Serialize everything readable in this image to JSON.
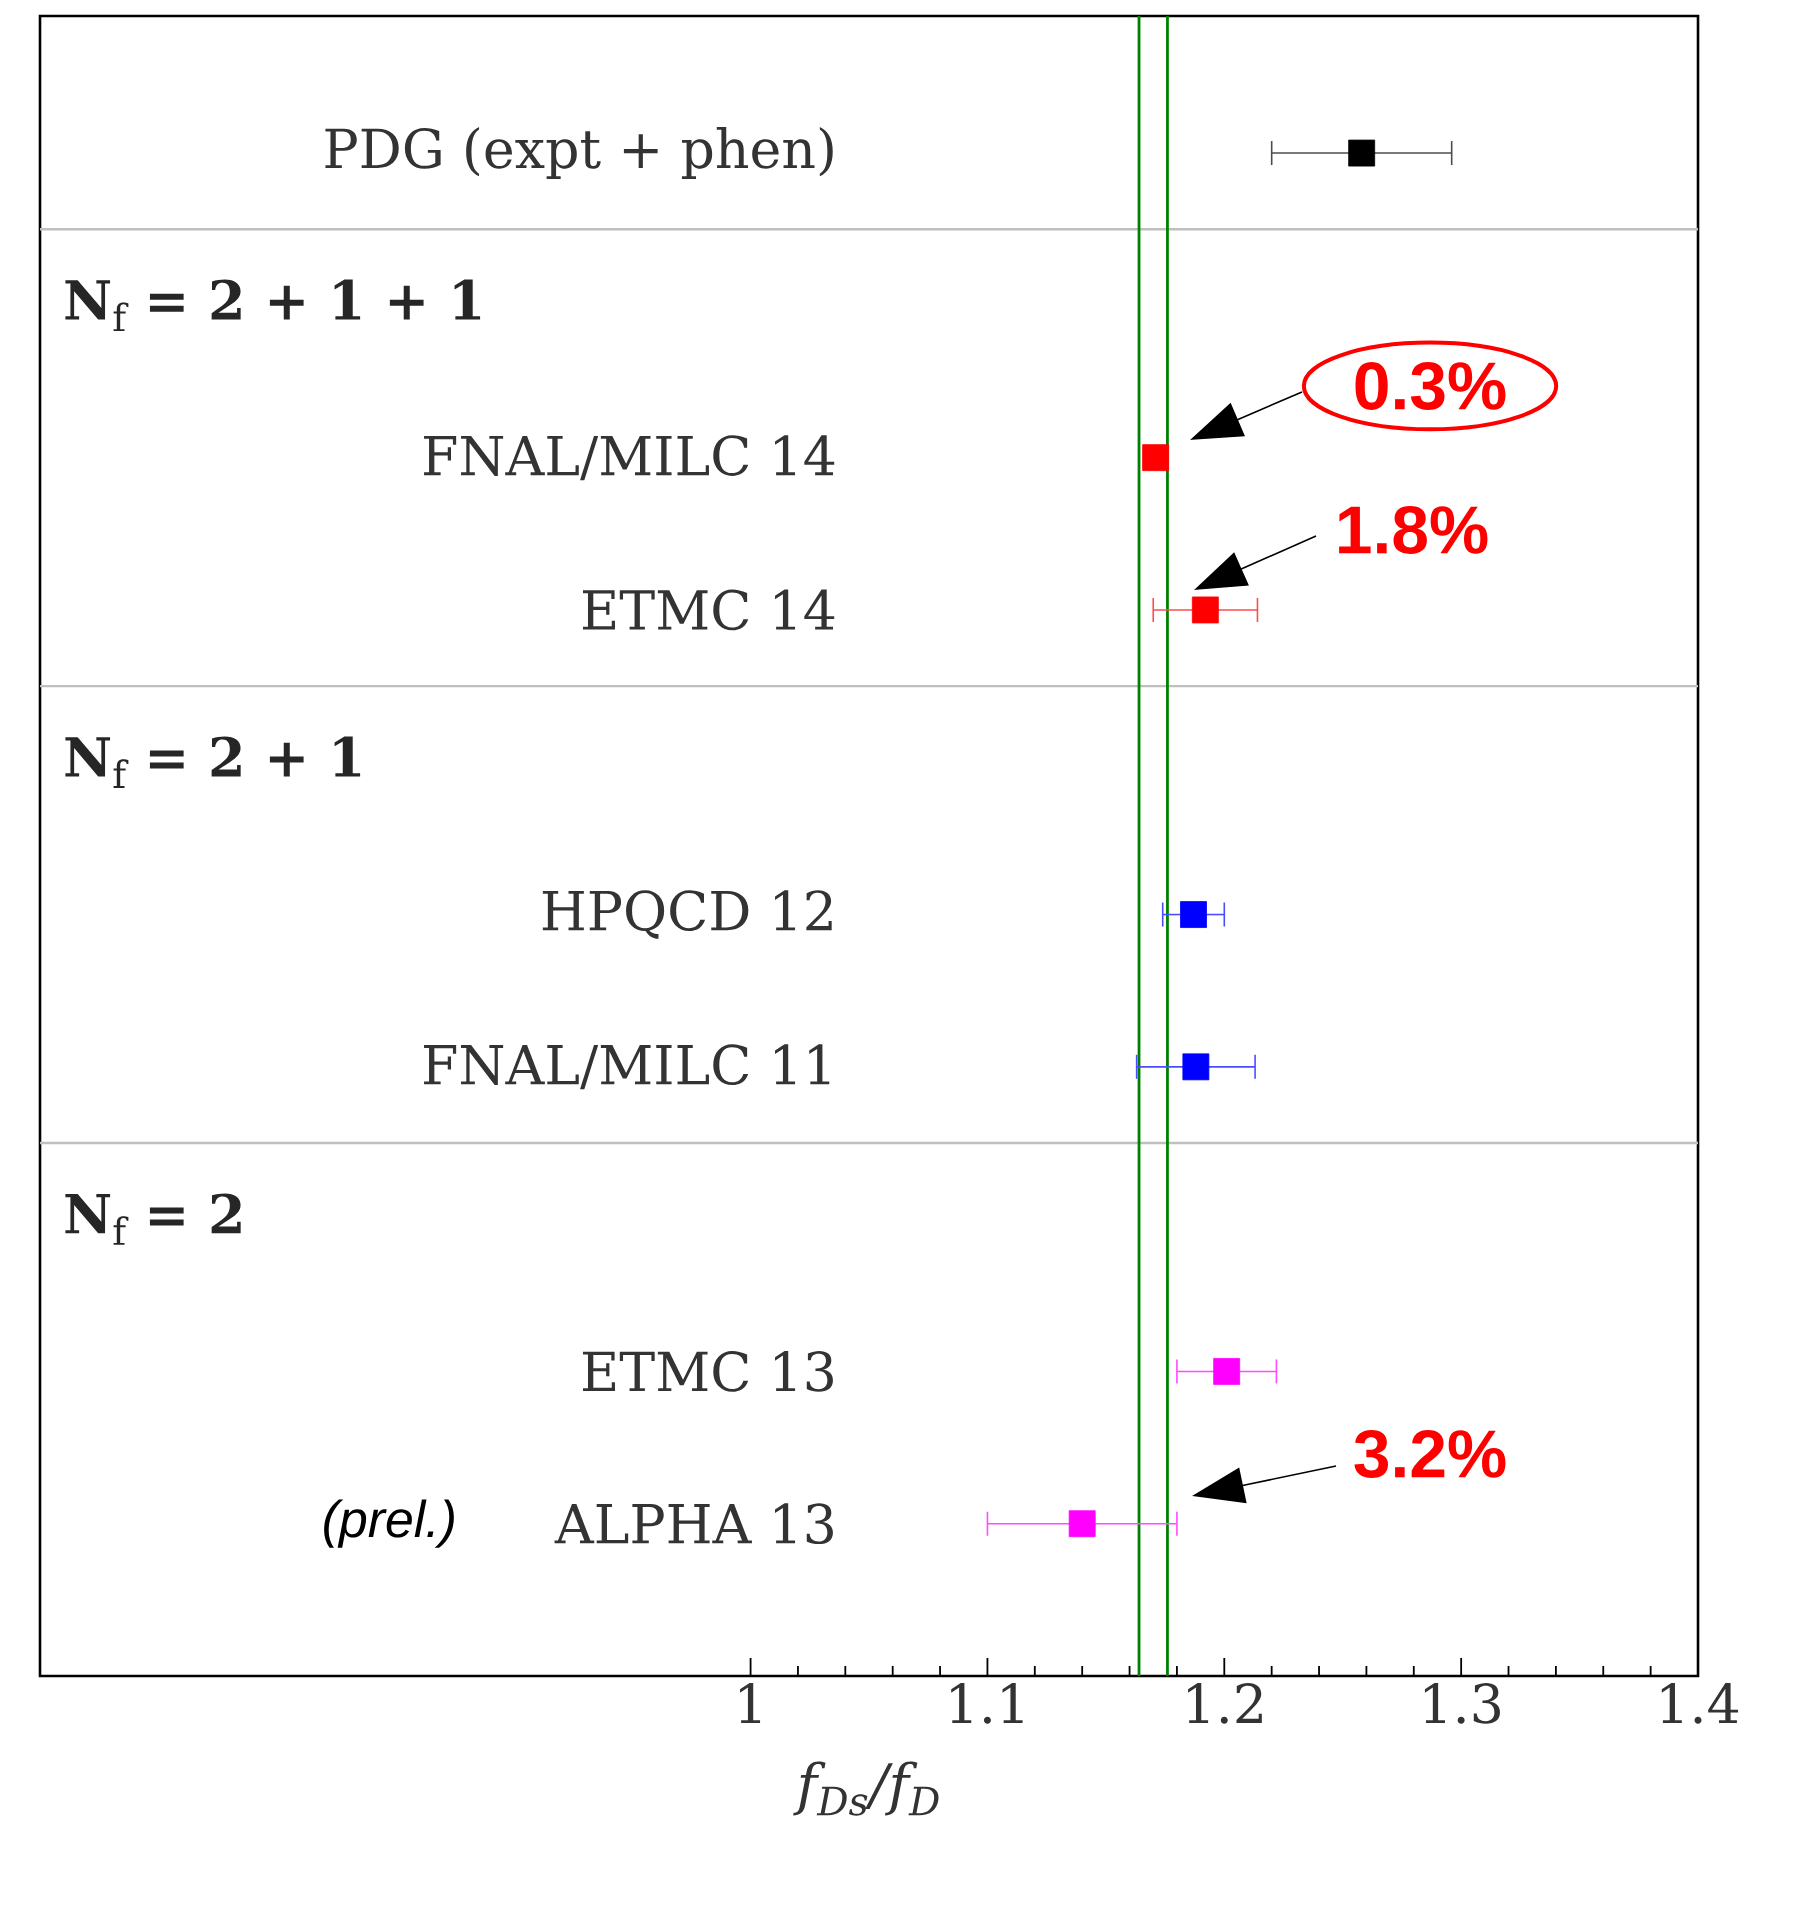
{
  "chart_data": {
    "type": "scatter",
    "orientation": "horizontal",
    "marker": "square",
    "categories": [
      "PDG (expt + phen)",
      "**N**$_{f}$ **= 2 + 1 + 1**",
      "FNAL/MILC 14",
      "ETMC 14",
      "**N**$_{f}$ **= 2 + 1**",
      "HPQCD 12",
      "FNAL/MILC 11",
      "**N**$_{f}$ **= 2**",
      "ETMC 13",
      "ALPHA 13"
    ],
    "values": [
      1.258,
      null,
      1.171,
      1.192,
      null,
      1.187,
      1.188,
      null,
      1.201,
      1.14
    ],
    "errors": [
      0.038,
      null,
      0.003,
      0.022,
      null,
      0.013,
      0.025,
      null,
      0.021,
      0.04
    ],
    "colors": [
      "#000000",
      null,
      "#ff0000",
      "#ff0000",
      null,
      "#0000ff",
      "#0000ff",
      null,
      "#ff00ff",
      "#ff00ff"
    ],
    "xlim": [
      0.7,
      1.4
    ],
    "xticks": [
      1,
      1.1,
      1.2,
      1.3,
      1.4
    ],
    "xlabel": "f$_{Ds}$/f$_{D}$",
    "ref_lines": [
      {
        "axis": "x",
        "value": 1.164,
        "color": "#008000"
      },
      {
        "axis": "x",
        "value": 1.176,
        "color": "#008000"
      }
    ],
    "annotations": [
      "0.3%",
      "1.8%",
      "3.2%",
      "(prel.)"
    ]
  }
}
